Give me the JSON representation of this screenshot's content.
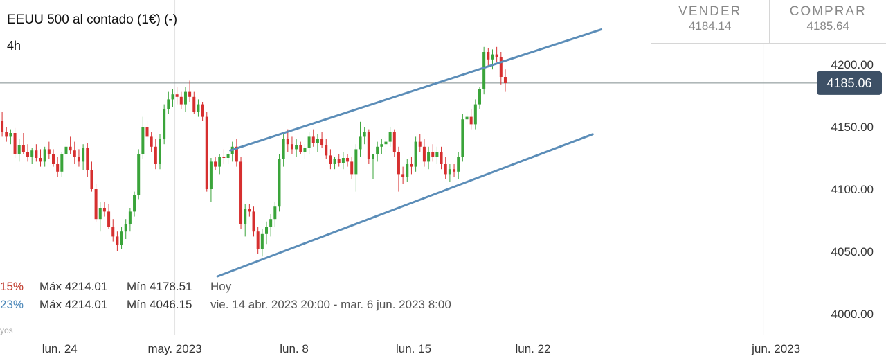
{
  "header": {
    "title": "EEUU 500 al contado (1€) (-)",
    "timeframe": "4h"
  },
  "quotes": {
    "sell_label": "VENDER",
    "sell_value": "4184.14",
    "buy_label": "COMPRAR",
    "buy_value": "4185.64"
  },
  "price_tag": "4185.06",
  "stats": [
    {
      "pct": "15%",
      "max": "Máx 4214.01",
      "min": "Mín 4178.51",
      "range": "Hoy"
    },
    {
      "pct": "23%",
      "max": "Máx 4214.01",
      "min": "Mín 4046.15",
      "range": "vie. 14 abr. 2023 20:00 - mar. 6 jun. 2023 8:00"
    }
  ],
  "footnote": "yos",
  "colors": {
    "up": "#3aa43a",
    "down": "#d62f2f",
    "channel": "#5b8db8",
    "price_line": "#7f8c8d",
    "tag_bg": "#3d5066"
  },
  "chart_data": {
    "type": "candlestick",
    "timeframe": "4h",
    "ylim": [
      3980,
      4240
    ],
    "yticks": [
      4000,
      4050,
      4100,
      4150,
      4200
    ],
    "ytick_labels": [
      "4000.00",
      "4050.00",
      "4100.00",
      "4150.00",
      "4200.00"
    ],
    "x_labels": [
      {
        "label": "lun. 24",
        "bar": 14
      },
      {
        "label": "may. 2023",
        "bar": 41
      },
      {
        "label": "lun. 8",
        "bar": 69
      },
      {
        "label": "lun. 15",
        "bar": 97
      },
      {
        "label": "lun. 22",
        "bar": 125
      },
      {
        "label": "jun. 2023",
        "bar": 182
      }
    ],
    "x_range": [
      0,
      208
    ],
    "current_price": 4185.06,
    "channel_upper": {
      "start": {
        "bar": 54,
        "price": 4131
      },
      "end": {
        "bar": 141,
        "price": 4228
      }
    },
    "channel_lower": {
      "start": {
        "bar": 51,
        "price": 4030
      },
      "end": {
        "bar": 139,
        "price": 4144
      }
    },
    "candles": [
      [
        4155,
        4162,
        4142,
        4146
      ],
      [
        4146,
        4150,
        4138,
        4142
      ],
      [
        4142,
        4148,
        4136,
        4145
      ],
      [
        4145,
        4149,
        4125,
        4128
      ],
      [
        4128,
        4140,
        4122,
        4135
      ],
      [
        4135,
        4145,
        4128,
        4130
      ],
      [
        4130,
        4136,
        4122,
        4126
      ],
      [
        4126,
        4133,
        4120,
        4131
      ],
      [
        4131,
        4136,
        4122,
        4125
      ],
      [
        4125,
        4132,
        4118,
        4122
      ],
      [
        4122,
        4134,
        4118,
        4132
      ],
      [
        4132,
        4138,
        4124,
        4128
      ],
      [
        4128,
        4132,
        4118,
        4120
      ],
      [
        4120,
        4126,
        4110,
        4114
      ],
      [
        4114,
        4130,
        4110,
        4128
      ],
      [
        4128,
        4138,
        4124,
        4134
      ],
      [
        4134,
        4142,
        4128,
        4131
      ],
      [
        4131,
        4138,
        4120,
        4126
      ],
      [
        4126,
        4132,
        4118,
        4122
      ],
      [
        4122,
        4136,
        4115,
        4133
      ],
      [
        4133,
        4137,
        4110,
        4115
      ],
      [
        4115,
        4122,
        4098,
        4100
      ],
      [
        4100,
        4104,
        4074,
        4076
      ],
      [
        4076,
        4090,
        4066,
        4085
      ],
      [
        4085,
        4090,
        4078,
        4082
      ],
      [
        4082,
        4088,
        4068,
        4070
      ],
      [
        4070,
        4076,
        4058,
        4062
      ],
      [
        4062,
        4066,
        4050,
        4055
      ],
      [
        4055,
        4070,
        4052,
        4066
      ],
      [
        4066,
        4076,
        4060,
        4072
      ],
      [
        4072,
        4085,
        4066,
        4082
      ],
      [
        4082,
        4098,
        4078,
        4095
      ],
      [
        4095,
        4132,
        4092,
        4128
      ],
      [
        4128,
        4158,
        4124,
        4150
      ],
      [
        4150,
        4155,
        4138,
        4142
      ],
      [
        4142,
        4146,
        4130,
        4134
      ],
      [
        4134,
        4140,
        4116,
        4120
      ],
      [
        4120,
        4144,
        4116,
        4140
      ],
      [
        4140,
        4168,
        4136,
        4164
      ],
      [
        4164,
        4178,
        4160,
        4172
      ],
      [
        4172,
        4180,
        4166,
        4176
      ],
      [
        4176,
        4182,
        4168,
        4174
      ],
      [
        4174,
        4178,
        4164,
        4168
      ],
      [
        4168,
        4182,
        4162,
        4178
      ],
      [
        4178,
        4187,
        4170,
        4174
      ],
      [
        4174,
        4178,
        4160,
        4162
      ],
      [
        4162,
        4172,
        4158,
        4168
      ],
      [
        4168,
        4170,
        4155,
        4158
      ],
      [
        4158,
        4162,
        4098,
        4100
      ],
      [
        4100,
        4125,
        4090,
        4122
      ],
      [
        4122,
        4126,
        4115,
        4118
      ],
      [
        4118,
        4128,
        4112,
        4126
      ],
      [
        4126,
        4132,
        4120,
        4125
      ],
      [
        4125,
        4130,
        4120,
        4128
      ],
      [
        4128,
        4138,
        4122,
        4134
      ],
      [
        4134,
        4140,
        4118,
        4122
      ],
      [
        4122,
        4126,
        4068,
        4072
      ],
      [
        4072,
        4088,
        4062,
        4084
      ],
      [
        4084,
        4088,
        4078,
        4082
      ],
      [
        4082,
        4086,
        4062,
        4066
      ],
      [
        4066,
        4070,
        4048,
        4052
      ],
      [
        4052,
        4068,
        4046,
        4064
      ],
      [
        4064,
        4074,
        4056,
        4070
      ],
      [
        4070,
        4080,
        4062,
        4076
      ],
      [
        4076,
        4090,
        4070,
        4086
      ],
      [
        4086,
        4128,
        4082,
        4124
      ],
      [
        4124,
        4144,
        4118,
        4140
      ],
      [
        4140,
        4148,
        4130,
        4136
      ],
      [
        4136,
        4142,
        4128,
        4132
      ],
      [
        4132,
        4140,
        4126,
        4135
      ],
      [
        4135,
        4138,
        4128,
        4130
      ],
      [
        4130,
        4136,
        4124,
        4133
      ],
      [
        4133,
        4146,
        4128,
        4142
      ],
      [
        4142,
        4148,
        4134,
        4137
      ],
      [
        4137,
        4144,
        4130,
        4140
      ],
      [
        4140,
        4146,
        4133,
        4135
      ],
      [
        4135,
        4140,
        4124,
        4127
      ],
      [
        4127,
        4132,
        4116,
        4120
      ],
      [
        4120,
        4126,
        4116,
        4124
      ],
      [
        4124,
        4128,
        4118,
        4121
      ],
      [
        4121,
        4130,
        4116,
        4125
      ],
      [
        4125,
        4128,
        4118,
        4122
      ],
      [
        4122,
        4126,
        4108,
        4112
      ],
      [
        4112,
        4136,
        4098,
        4132
      ],
      [
        4132,
        4154,
        4126,
        4142
      ],
      [
        4142,
        4150,
        4136,
        4146
      ],
      [
        4146,
        4148,
        4120,
        4124
      ],
      [
        4124,
        4128,
        4108,
        4128
      ],
      [
        4128,
        4138,
        4122,
        4134
      ],
      [
        4134,
        4140,
        4128,
        4136
      ],
      [
        4136,
        4142,
        4130,
        4138
      ],
      [
        4138,
        4150,
        4134,
        4146
      ],
      [
        4146,
        4148,
        4126,
        4130
      ],
      [
        4130,
        4134,
        4098,
        4112
      ],
      [
        4112,
        4118,
        4104,
        4110
      ],
      [
        4110,
        4124,
        4106,
        4120
      ],
      [
        4120,
        4126,
        4112,
        4118
      ],
      [
        4118,
        4142,
        4114,
        4138
      ],
      [
        4138,
        4144,
        4130,
        4134
      ],
      [
        4134,
        4140,
        4118,
        4122
      ],
      [
        4122,
        4134,
        4116,
        4130
      ],
      [
        4130,
        4136,
        4122,
        4126
      ],
      [
        4126,
        4134,
        4120,
        4130
      ],
      [
        4130,
        4134,
        4116,
        4120
      ],
      [
        4120,
        4126,
        4108,
        4112
      ],
      [
        4112,
        4120,
        4106,
        4116
      ],
      [
        4116,
        4120,
        4110,
        4114
      ],
      [
        4114,
        4130,
        4108,
        4126
      ],
      [
        4126,
        4160,
        4122,
        4156
      ],
      [
        4156,
        4162,
        4150,
        4158
      ],
      [
        4158,
        4164,
        4148,
        4152
      ],
      [
        4152,
        4172,
        4148,
        4168
      ],
      [
        4168,
        4182,
        4164,
        4180
      ],
      [
        4180,
        4214,
        4176,
        4210
      ],
      [
        4210,
        4213,
        4198,
        4204
      ],
      [
        4204,
        4212,
        4196,
        4208
      ],
      [
        4208,
        4214,
        4202,
        4206
      ],
      [
        4206,
        4210,
        4184,
        4190
      ],
      [
        4190,
        4196,
        4178,
        4185
      ]
    ]
  }
}
